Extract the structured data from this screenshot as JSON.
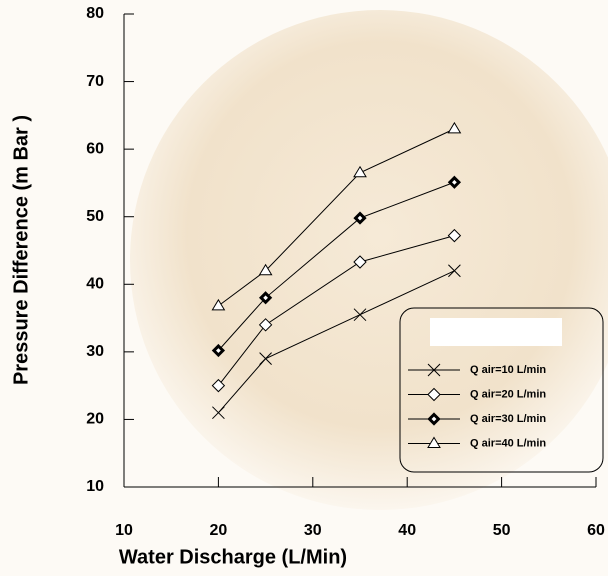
{
  "chart_data": {
    "type": "line",
    "x_label": "Water Discharge (L/Min)",
    "y_label": "Pressure Difference (m Bar )",
    "xlim": [
      10,
      60
    ],
    "xticks": [
      10,
      20,
      30,
      40,
      50,
      60
    ],
    "ylim": [
      10,
      80
    ],
    "yticks": [
      10,
      20,
      30,
      40,
      50,
      60,
      70,
      80
    ],
    "legend": "lower right",
    "series": [
      {
        "name": "Q air=10 L/min",
        "color": "#000000",
        "marker": "x",
        "x": [
          20,
          25,
          35,
          45
        ],
        "values": [
          21,
          29,
          35.5,
          42
        ]
      },
      {
        "name": "Q air=20 L/min",
        "color": "#000000",
        "marker": "diamond",
        "x": [
          20,
          25,
          35,
          45
        ],
        "values": [
          25,
          34,
          43.3,
          47.2
        ]
      },
      {
        "name": "Q air=30 L/min",
        "color": "#000000",
        "marker": "diamond-bold",
        "x": [
          20,
          25,
          35,
          45
        ],
        "values": [
          30.2,
          38,
          49.8,
          55.1
        ]
      },
      {
        "name": "Q air=40 L/min",
        "color": "#000000",
        "marker": "triangle",
        "x": [
          20,
          25,
          35,
          45
        ],
        "values": [
          36.8,
          42,
          56.5,
          63
        ]
      }
    ]
  }
}
